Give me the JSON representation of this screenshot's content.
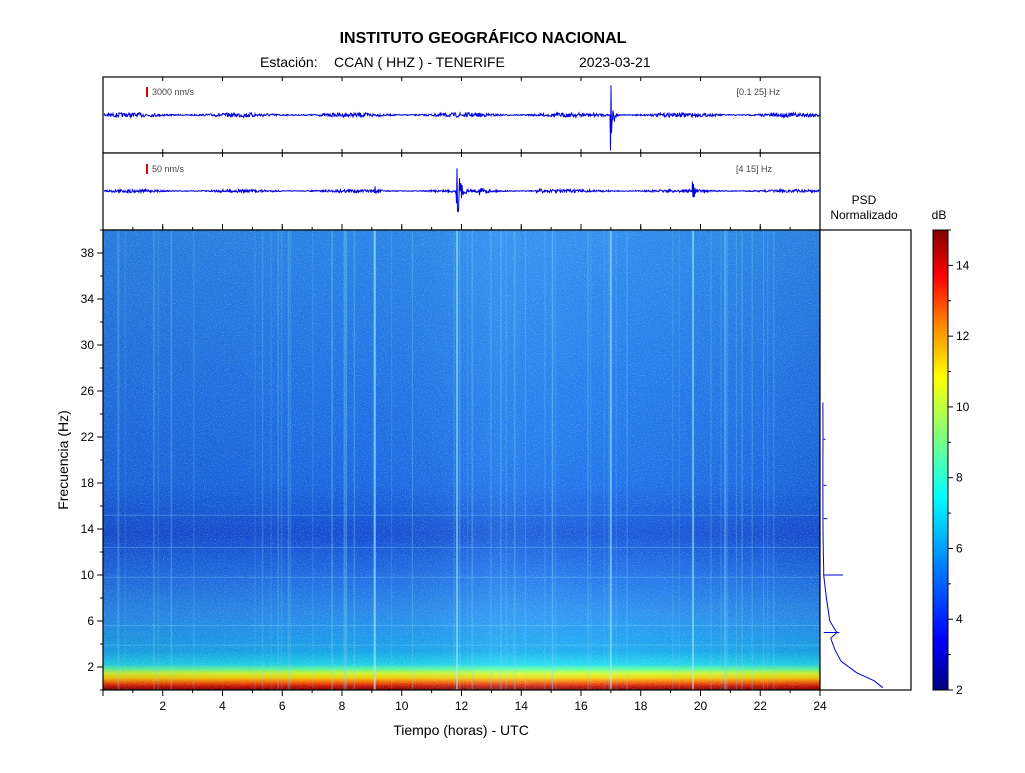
{
  "header": {
    "title": "INSTITUTO GEOGRÁFICO NACIONAL",
    "station_label": "Estación:",
    "station": "CCAN ( HHZ ) - TENERIFE",
    "date": "2023-03-21"
  },
  "traces": [
    {
      "scale_label": "3000 nm/s",
      "band_label": "[0.1 25] Hz"
    },
    {
      "scale_label": "50 nm/s",
      "band_label": "[4 15] Hz"
    }
  ],
  "psd": {
    "title_line1": "PSD",
    "title_line2": "Normalizado"
  },
  "colorbar": {
    "unit": "dB",
    "range": [
      2,
      15
    ],
    "ticks": [
      "2",
      "4",
      "6",
      "8",
      "10",
      "12",
      "14"
    ],
    "colors": [
      "#00007f",
      "#0000ff",
      "#007fff",
      "#00ffff",
      "#7fff7f",
      "#ffff00",
      "#ff7f00",
      "#ff0000",
      "#7f0000"
    ]
  },
  "chart_data": {
    "type": "heatmap",
    "xlabel": "Tiempo (horas) - UTC",
    "ylabel": "Frecuencia  (Hz)",
    "xlim": [
      0,
      24
    ],
    "ylim": [
      0,
      40
    ],
    "x_ticks": [
      "2",
      "4",
      "6",
      "8",
      "10",
      "12",
      "14",
      "16",
      "18",
      "20",
      "22",
      "24"
    ],
    "y_ticks": [
      "2",
      "6",
      "10",
      "14",
      "18",
      "22",
      "26",
      "30",
      "34",
      "38"
    ],
    "events_hours": [
      9.1,
      11.85,
      17.0,
      19.75
    ],
    "psd_normalized": {
      "frequency_hz": [
        0.2,
        0.8,
        1.5,
        2.5,
        3.5,
        4.5,
        5,
        6,
        7,
        8,
        9,
        10,
        10.5,
        12,
        14,
        16,
        18,
        20,
        22,
        24,
        25
      ],
      "value": [
        0.7,
        0.6,
        0.4,
        0.22,
        0.15,
        0.1,
        0.17,
        0.09,
        0.07,
        0.05,
        0.035,
        0.02,
        0.02,
        0.015,
        0.012,
        0.01,
        0.01,
        0.01,
        0.012,
        0.01,
        0.01
      ]
    }
  }
}
